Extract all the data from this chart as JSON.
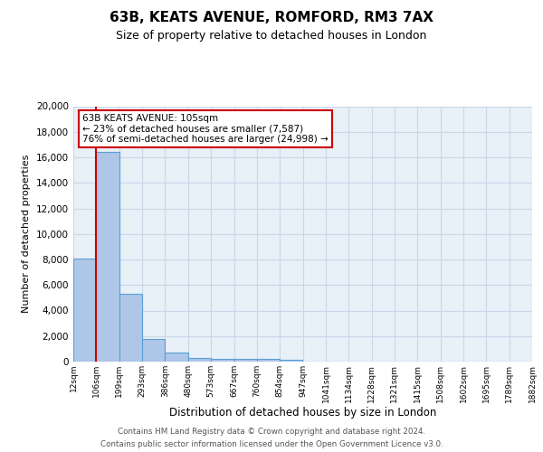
{
  "title": "63B, KEATS AVENUE, ROMFORD, RM3 7AX",
  "subtitle": "Size of property relative to detached houses in London",
  "xlabel": "Distribution of detached houses by size in London",
  "ylabel": "Number of detached properties",
  "bin_labels": [
    "12sqm",
    "106sqm",
    "199sqm",
    "293sqm",
    "386sqm",
    "480sqm",
    "573sqm",
    "667sqm",
    "760sqm",
    "854sqm",
    "947sqm",
    "1041sqm",
    "1134sqm",
    "1228sqm",
    "1321sqm",
    "1415sqm",
    "1508sqm",
    "1602sqm",
    "1695sqm",
    "1789sqm",
    "1882sqm"
  ],
  "bin_edges": [
    12,
    106,
    199,
    293,
    386,
    480,
    573,
    667,
    760,
    854,
    947,
    1041,
    1134,
    1228,
    1321,
    1415,
    1508,
    1602,
    1695,
    1789,
    1882
  ],
  "bar_heights": [
    8100,
    16400,
    5300,
    1750,
    700,
    300,
    220,
    190,
    180,
    130,
    0,
    0,
    0,
    0,
    0,
    0,
    0,
    0,
    0,
    0
  ],
  "bar_color": "#aec6e8",
  "bar_edge_color": "#5a9fd4",
  "vline_x": 106,
  "vline_color": "#cc0000",
  "annotation_line1": "63B KEATS AVENUE: 105sqm",
  "annotation_line2": "← 23% of detached houses are smaller (7,587)",
  "annotation_line3": "76% of semi-detached houses are larger (24,998) →",
  "box_edge_color": "#cc0000",
  "ylim": [
    0,
    20000
  ],
  "yticks": [
    0,
    2000,
    4000,
    6000,
    8000,
    10000,
    12000,
    14000,
    16000,
    18000,
    20000
  ],
  "grid_color": "#c8d8e8",
  "bg_color": "#e8f0f8",
  "footer1": "Contains HM Land Registry data © Crown copyright and database right 2024.",
  "footer2": "Contains public sector information licensed under the Open Government Licence v3.0."
}
